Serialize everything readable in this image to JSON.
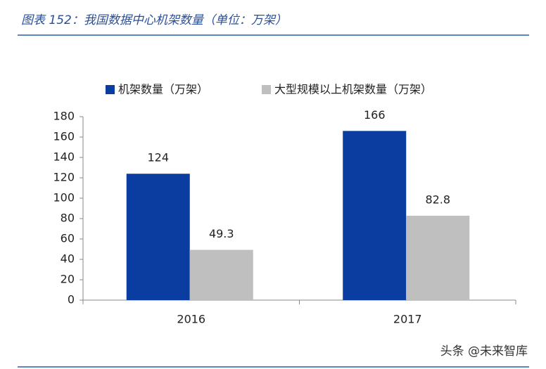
{
  "chart_data": {
    "type": "bar",
    "title": "图表 152：我国数据中心机架数量（单位：万架）",
    "categories": [
      "2016",
      "2017"
    ],
    "series": [
      {
        "name": "机架数量（万架）",
        "color": "#0b3c9f",
        "values": [
          124,
          166
        ]
      },
      {
        "name": "大型规模以上机架数量（万架）",
        "color": "#bfbfbf",
        "values": [
          49.3,
          82.8
        ]
      }
    ],
    "ylim": [
      0,
      180
    ],
    "yticks": [
      0,
      20,
      40,
      60,
      80,
      100,
      120,
      140,
      160,
      180
    ],
    "grid": false,
    "legend": "top"
  },
  "watermark": "头条 @未来智库"
}
